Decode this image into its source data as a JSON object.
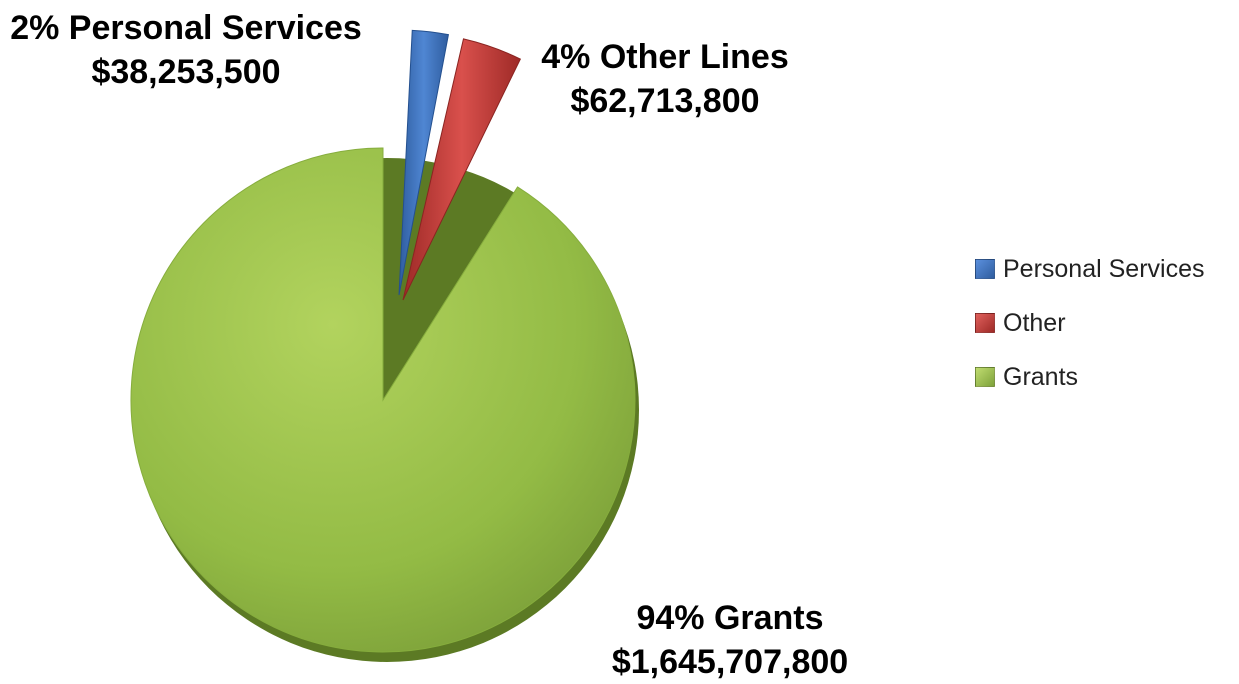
{
  "chart_data": {
    "type": "pie",
    "title": "",
    "slices": [
      {
        "label": "Personal Services",
        "percent": "2%",
        "value": 38253500,
        "value_label": "$38,253,500",
        "data_label": "2% Personal Services",
        "color": "#3a6fbd",
        "exploded": true
      },
      {
        "label": "Other",
        "percent": "4%",
        "value": 62713800,
        "value_label": "$62,713,800",
        "data_label": "4% Other Lines",
        "color": "#c33a37",
        "exploded": true
      },
      {
        "label": "Grants",
        "percent": "94%",
        "value": 1645707800,
        "value_label": "$1,645,707,800",
        "data_label": "94% Grants",
        "color": "#8fb43f",
        "exploded": false
      }
    ],
    "legend": {
      "position": "right",
      "entries": [
        "Personal Services",
        "Other",
        "Grants"
      ]
    }
  }
}
